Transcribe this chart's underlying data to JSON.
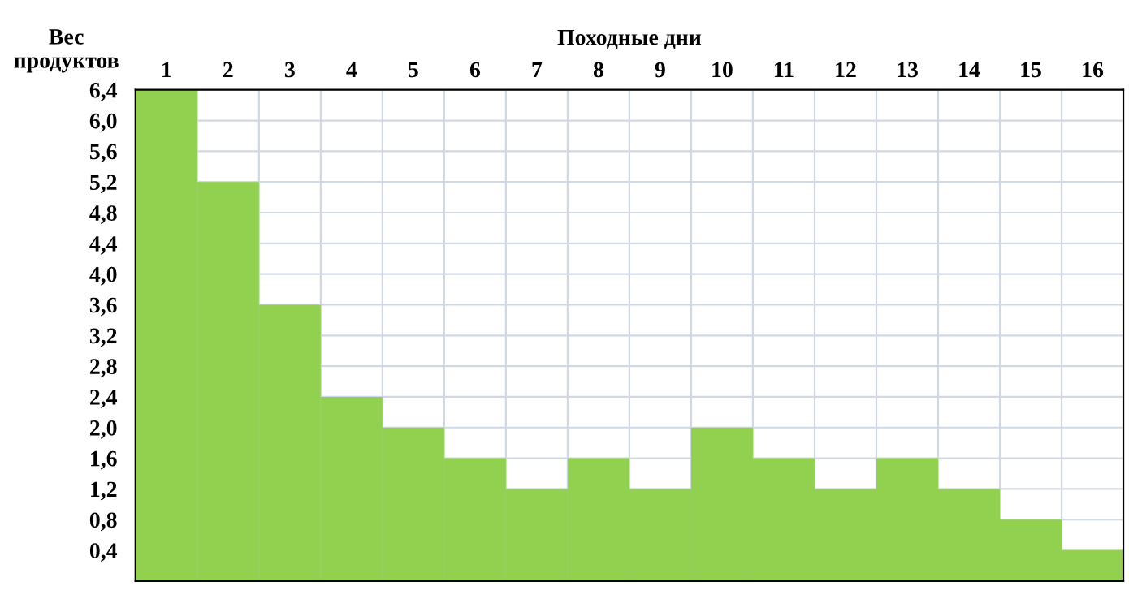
{
  "chart_data": {
    "type": "bar",
    "title": "Походные дни",
    "ylabel": "Вес\nпродуктов",
    "categories": [
      "1",
      "2",
      "3",
      "4",
      "5",
      "6",
      "7",
      "8",
      "9",
      "10",
      "11",
      "12",
      "13",
      "14",
      "15",
      "16"
    ],
    "values": [
      6.4,
      5.2,
      3.6,
      2.4,
      2.0,
      1.6,
      1.2,
      1.6,
      1.2,
      2.0,
      1.6,
      1.2,
      1.6,
      1.2,
      0.8,
      0.4
    ],
    "color": "#92d050",
    "ylim": [
      0,
      6.4
    ],
    "yticks": [
      {
        "value": 0.4,
        "label": "0,4"
      },
      {
        "value": 0.8,
        "label": "0,8"
      },
      {
        "value": 1.2,
        "label": "1,2"
      },
      {
        "value": 1.6,
        "label": "1,6"
      },
      {
        "value": 2.0,
        "label": "2,0"
      },
      {
        "value": 2.4,
        "label": "2,4"
      },
      {
        "value": 2.8,
        "label": "2,8"
      },
      {
        "value": 3.2,
        "label": "3,2"
      },
      {
        "value": 3.6,
        "label": "3,6"
      },
      {
        "value": 4.0,
        "label": "4,0"
      },
      {
        "value": 4.4,
        "label": "4,4"
      },
      {
        "value": 4.8,
        "label": "4,8"
      },
      {
        "value": 5.2,
        "label": "5,2"
      },
      {
        "value": 5.6,
        "label": "5,6"
      },
      {
        "value": 6.0,
        "label": "6,0"
      },
      {
        "value": 6.4,
        "label": "6,4"
      }
    ],
    "grid": true
  }
}
